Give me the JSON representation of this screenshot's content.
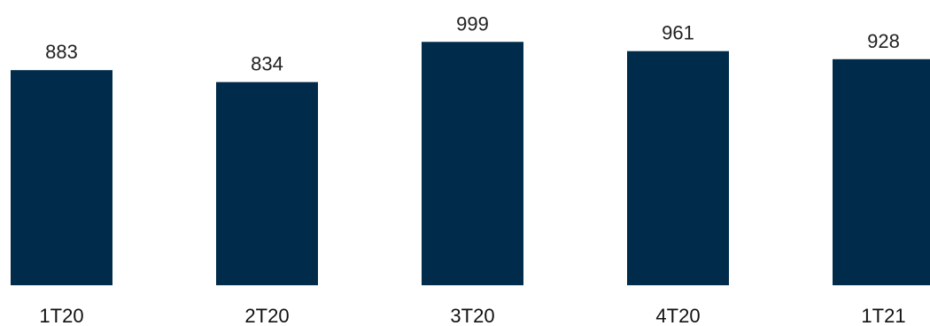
{
  "chart_data": {
    "type": "bar",
    "categories": [
      "1T20",
      "2T20",
      "3T20",
      "4T20",
      "1T21"
    ],
    "values": [
      883,
      834,
      999,
      961,
      928
    ],
    "title": "",
    "xlabel": "",
    "ylabel": "",
    "bar_color": "#002b4a",
    "grid": false,
    "legend": "none"
  }
}
